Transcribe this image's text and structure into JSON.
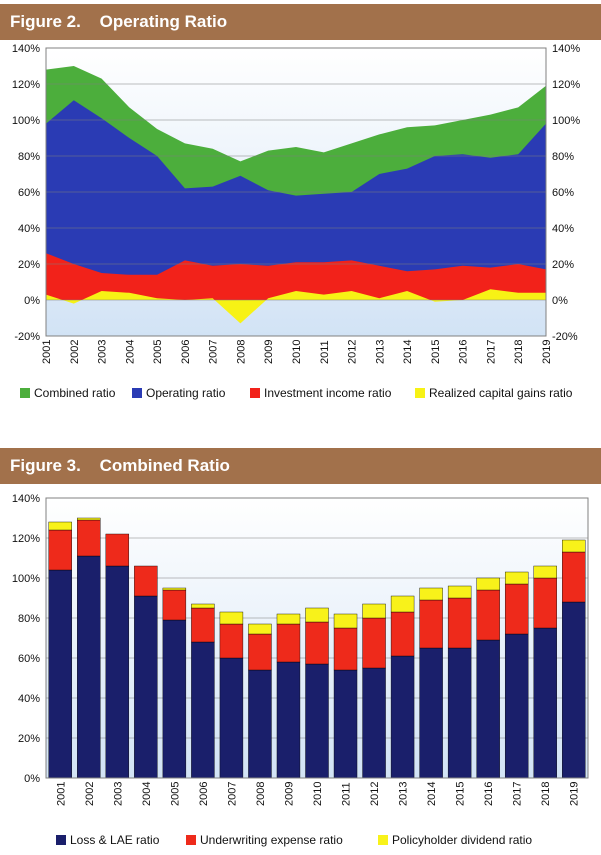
{
  "figures": [
    {
      "number": "Figure 2.",
      "title": "Operating Ratio"
    },
    {
      "number": "Figure 3.",
      "title": "Combined Ratio"
    }
  ],
  "colors": {
    "header": "#a2714b",
    "plot_bg_top": "#ffffff",
    "plot_bg_bottom": "#d2e3f5",
    "combined": "#4cae3c",
    "operating": "#2a3bb4",
    "investment": "#f2221a",
    "capital_gains": "#f7f215",
    "loss_lae": "#1a1f6b",
    "underwriting": "#ee2a1b",
    "policyholder": "#f8f21a"
  },
  "chart_data": [
    {
      "type": "area",
      "x": [
        "2001",
        "2002",
        "2003",
        "2004",
        "2005",
        "2006",
        "2007",
        "2008",
        "2009",
        "2010",
        "2011",
        "2012",
        "2013",
        "2014",
        "2015",
        "2016",
        "2017",
        "2018",
        "2019"
      ],
      "ylim": [
        -20,
        140
      ],
      "y_ticks": [
        "-20%",
        "0%",
        "20%",
        "40%",
        "60%",
        "80%",
        "100%",
        "120%",
        "140%"
      ],
      "grid": "horizontal",
      "legend_position": "bottom",
      "series": [
        {
          "name": "Combined ratio",
          "values": [
            128,
            130,
            123,
            107,
            95,
            87,
            84,
            77,
            83,
            85,
            82,
            87,
            92,
            96,
            97,
            100,
            103,
            107,
            119
          ]
        },
        {
          "name": "Operating ratio",
          "values": [
            98,
            111,
            101,
            90,
            80,
            62,
            63,
            69,
            61,
            58,
            59,
            60,
            70,
            73,
            80,
            81,
            79,
            81,
            98
          ]
        },
        {
          "name": "Investment income ratio",
          "values": [
            26,
            20,
            15,
            14,
            14,
            22,
            19,
            20,
            19,
            21,
            21,
            22,
            19,
            16,
            17,
            19,
            18,
            20,
            17
          ]
        },
        {
          "name": "Realized capital gains ratio",
          "values": [
            3,
            -2,
            5,
            4,
            1,
            0,
            1,
            -13,
            1,
            5,
            3,
            5,
            1,
            5,
            -1,
            0,
            6,
            4,
            4
          ]
        }
      ]
    },
    {
      "type": "bar",
      "stacked": true,
      "categories": [
        "2001",
        "2002",
        "2003",
        "2004",
        "2005",
        "2006",
        "2007",
        "2008",
        "2009",
        "2010",
        "2011",
        "2012",
        "2013",
        "2014",
        "2015",
        "2016",
        "2017",
        "2018",
        "2019"
      ],
      "ylim": [
        0,
        140
      ],
      "y_ticks": [
        "0%",
        "20%",
        "40%",
        "60%",
        "80%",
        "100%",
        "120%",
        "140%"
      ],
      "grid": "horizontal",
      "legend_position": "bottom",
      "series": [
        {
          "name": "Loss & LAE ratio",
          "values": [
            104,
            111,
            106,
            91,
            79,
            68,
            60,
            54,
            58,
            57,
            54,
            55,
            61,
            65,
            65,
            69,
            72,
            75,
            88
          ]
        },
        {
          "name": "Underwriting expense ratio",
          "values": [
            20,
            18,
            16,
            15,
            15,
            17,
            17,
            18,
            19,
            21,
            21,
            25,
            22,
            24,
            25,
            25,
            25,
            25,
            25
          ]
        },
        {
          "name": "Policyholder dividend ratio",
          "values": [
            4,
            1,
            0,
            0,
            1,
            2,
            6,
            5,
            5,
            7,
            7,
            7,
            8,
            6,
            6,
            6,
            6,
            6,
            6
          ]
        }
      ]
    }
  ]
}
